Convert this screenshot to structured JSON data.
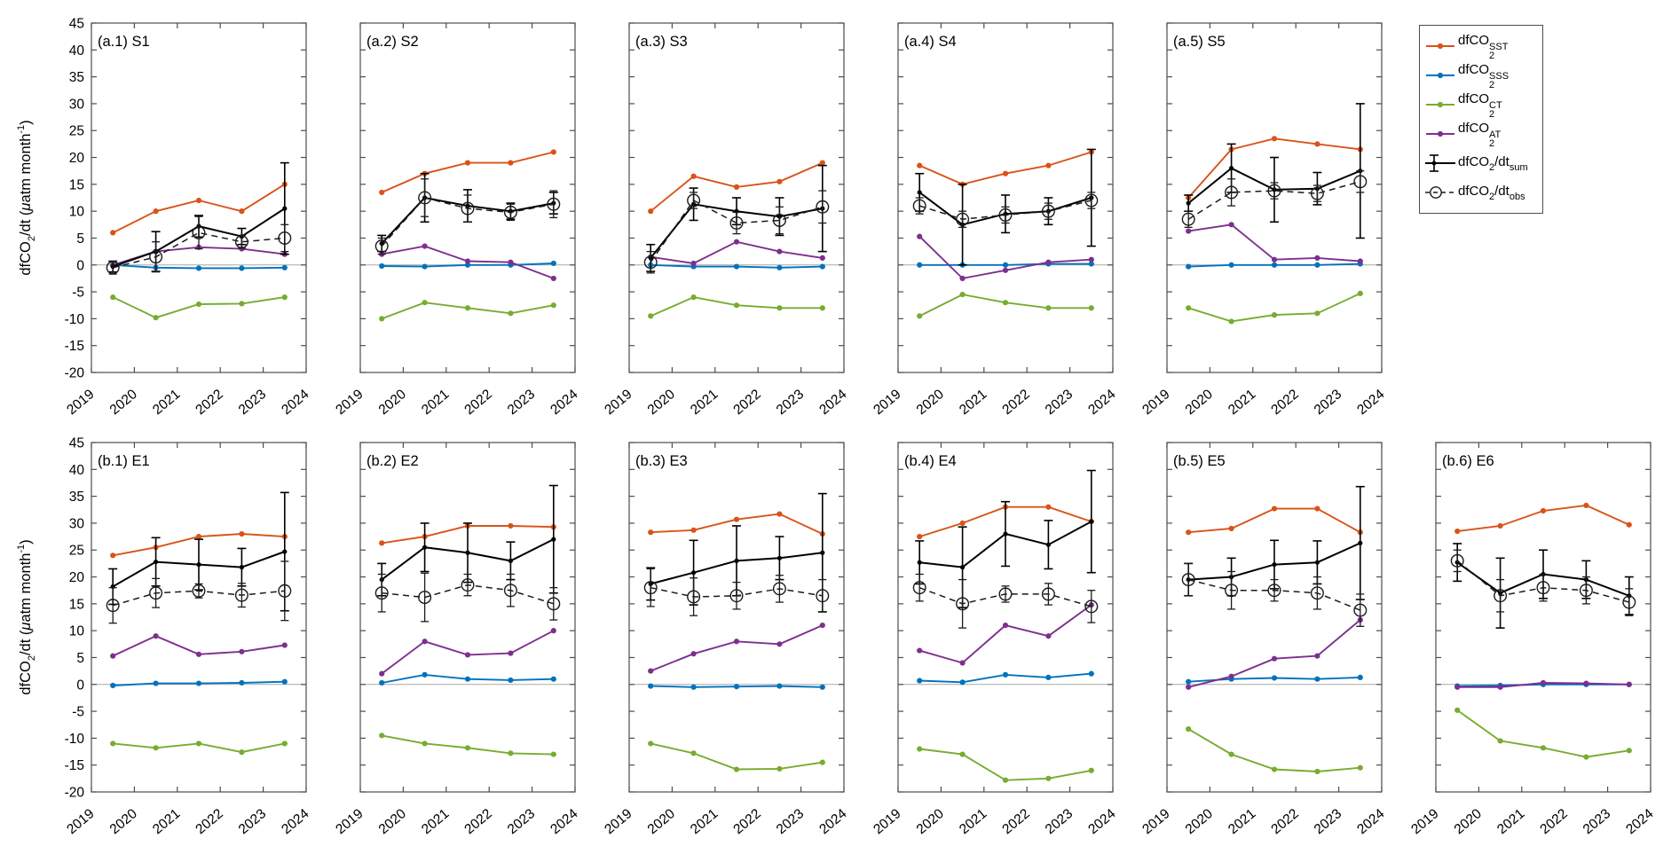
{
  "figure": {
    "background": "#ffffff",
    "ylabel_parts": [
      {
        "t": "dfCO"
      },
      {
        "sub": "2"
      },
      {
        "t": "/dt ("
      },
      {
        "i": "μ"
      },
      {
        "t": "atm month"
      },
      {
        "sup": "-1"
      },
      {
        "t": ")"
      }
    ],
    "colors": {
      "sst": "#D95319",
      "sss": "#0072BD",
      "ct": "#77AC30",
      "at": "#7E2F8E",
      "sum": "#000000",
      "obs": "#1a1a1a",
      "zero_line": "#a9a9a9",
      "axis": "#4d4d4d"
    },
    "axis": {
      "ylim": [
        -20,
        45
      ],
      "xlim": [
        2019,
        2024
      ],
      "yticks": [
        45,
        40,
        35,
        30,
        25,
        20,
        15,
        10,
        5,
        0,
        -5,
        -10,
        -15,
        -20
      ],
      "xticks": [
        2019,
        2020,
        2021,
        2022,
        2023,
        2024
      ],
      "x": [
        2019.5,
        2020.5,
        2021.5,
        2022.5,
        2023.5
      ]
    },
    "legend": [
      {
        "key": "sst",
        "marker": "line-dot",
        "parts": [
          {
            "t": "dfCO"
          },
          {
            "stack": {
              "sup": "SST",
              "sub": "2"
            }
          }
        ]
      },
      {
        "key": "sss",
        "marker": "line-dot",
        "parts": [
          {
            "t": "dfCO"
          },
          {
            "stack": {
              "sup": "SSS",
              "sub": "2"
            }
          }
        ]
      },
      {
        "key": "ct",
        "marker": "line-dot",
        "parts": [
          {
            "t": "dfCO"
          },
          {
            "stack": {
              "sup": "CT",
              "sub": "2"
            }
          }
        ]
      },
      {
        "key": "at",
        "marker": "line-dot",
        "parts": [
          {
            "t": "dfCO"
          },
          {
            "stack": {
              "sup": "AT",
              "sub": "2"
            }
          }
        ]
      },
      {
        "key": "sum",
        "marker": "errorbar",
        "parts": [
          {
            "t": "dfCO"
          },
          {
            "sub": "2"
          },
          {
            "t": "/dt"
          },
          {
            "sub": "sum"
          }
        ]
      },
      {
        "key": "obs",
        "marker": "dashed-circle",
        "parts": [
          {
            "t": "dfCO"
          },
          {
            "sub": "2"
          },
          {
            "t": "/dt"
          },
          {
            "sub": "obs"
          }
        ]
      }
    ]
  },
  "chart_data": [
    {
      "id": "a1",
      "row": 0,
      "col": 0,
      "label": "(a.1) S1",
      "type": "line",
      "series": {
        "sst": [
          6,
          10,
          12,
          10,
          15
        ],
        "sss": [
          0,
          -0.5,
          -0.6,
          -0.6,
          -0.5
        ],
        "ct": [
          -6,
          -9.8,
          -7.3,
          -7.2,
          -6
        ],
        "at": [
          0,
          2.5,
          3.3,
          3,
          2
        ],
        "sum": {
          "values": [
            -0.3,
            2.5,
            7.2,
            5.3,
            10.5
          ],
          "err": [
            1,
            3.7,
            2,
            1.5,
            8.5
          ]
        },
        "obs": {
          "values": [
            -0.5,
            1.5,
            6,
            4.3,
            5
          ],
          "err": [
            1.2,
            2.8,
            3,
            1.2,
            2.5
          ]
        }
      }
    },
    {
      "id": "a2",
      "row": 0,
      "col": 1,
      "label": "(a.2) S2",
      "type": "line",
      "series": {
        "sst": [
          13.5,
          17,
          19,
          19,
          21
        ],
        "sss": [
          -0.2,
          -0.3,
          0,
          0,
          0.3
        ],
        "ct": [
          -10,
          -7,
          -8,
          -9,
          -7.5
        ],
        "at": [
          2,
          3.5,
          0.7,
          0.5,
          -2.5
        ],
        "sum": {
          "values": [
            4,
            12.5,
            11,
            10,
            11.5
          ],
          "err": [
            1.5,
            4.5,
            3,
            1.5,
            2
          ]
        },
        "obs": {
          "values": [
            3.5,
            12.5,
            10.5,
            9.8,
            11.3
          ],
          "err": [
            1.5,
            3.5,
            2.5,
            1.5,
            2.5
          ]
        }
      }
    },
    {
      "id": "a3",
      "row": 0,
      "col": 2,
      "label": "(a.3) S3",
      "type": "line",
      "series": {
        "sst": [
          10,
          16.5,
          14.5,
          15.5,
          19
        ],
        "sss": [
          0,
          -0.3,
          -0.3,
          -0.5,
          -0.3
        ],
        "ct": [
          -9.5,
          -6,
          -7.5,
          -8,
          -8
        ],
        "at": [
          1.5,
          0.3,
          4.3,
          2.5,
          1.3
        ],
        "sum": {
          "values": [
            1.3,
            11.3,
            10,
            9,
            10.5
          ],
          "err": [
            2.5,
            3,
            2.5,
            3.5,
            8
          ]
        },
        "obs": {
          "values": [
            0.5,
            12,
            7.8,
            8.3,
            10.8
          ],
          "err": [
            2,
            1.5,
            2,
            2.5,
            3
          ]
        }
      }
    },
    {
      "id": "a4",
      "row": 0,
      "col": 3,
      "label": "(a.4) S4",
      "type": "line",
      "series": {
        "sst": [
          18.5,
          15,
          17,
          18.5,
          21
        ],
        "sss": [
          0,
          0,
          0,
          0.2,
          0.2
        ],
        "ct": [
          -9.5,
          -5.5,
          -7,
          -8,
          -8
        ],
        "at": [
          5.3,
          -2.5,
          -1,
          0.5,
          1
        ],
        "sum": {
          "values": [
            13.5,
            7.5,
            9.5,
            10,
            12.5
          ],
          "err": [
            3.5,
            7.5,
            3.5,
            2.5,
            9
          ]
        },
        "obs": {
          "values": [
            11,
            8.5,
            9.3,
            10,
            12
          ],
          "err": [
            1.5,
            1.5,
            1.5,
            1.5,
            1.5
          ]
        }
      }
    },
    {
      "id": "a5",
      "row": 0,
      "col": 4,
      "label": "(a.5) S5",
      "type": "line",
      "series": {
        "sst": [
          12.5,
          21.5,
          23.5,
          22.5,
          21.5
        ],
        "sss": [
          -0.3,
          0,
          0,
          0,
          0.2
        ],
        "ct": [
          -8,
          -10.5,
          -9.3,
          -9,
          -5.3
        ],
        "at": [
          6.3,
          7.5,
          1,
          1.3,
          0.7
        ],
        "sum": {
          "values": [
            11.5,
            18,
            14,
            14.2,
            17.5
          ],
          "err": [
            1.5,
            4.5,
            6,
            3,
            12.5
          ]
        },
        "obs": {
          "values": [
            8.5,
            13.5,
            13.8,
            13.3,
            15.5
          ],
          "err": [
            1.5,
            2.5,
            1.5,
            1.5,
            2
          ]
        }
      }
    },
    {
      "id": "b1",
      "row": 1,
      "col": 0,
      "label": "(b.1) E1",
      "type": "line",
      "series": {
        "sst": [
          24,
          25.5,
          27.5,
          28,
          27.5
        ],
        "sss": [
          -0.2,
          0.2,
          0.2,
          0.3,
          0.5
        ],
        "ct": [
          -11,
          -11.8,
          -11,
          -12.6,
          -11
        ],
        "at": [
          5.3,
          9,
          5.6,
          6.1,
          7.3
        ],
        "sum": {
          "values": [
            18.2,
            22.8,
            22.3,
            21.8,
            24.7
          ],
          "err": [
            3.3,
            4.5,
            4.7,
            3.5,
            11
          ]
        },
        "obs": {
          "values": [
            14.7,
            17,
            17.4,
            16.6,
            17.4
          ],
          "err": [
            3.3,
            2.7,
            1.3,
            2.2,
            5.5
          ]
        }
      }
    },
    {
      "id": "b2",
      "row": 1,
      "col": 1,
      "label": "(b.2) E2",
      "type": "line",
      "series": {
        "sst": [
          26.3,
          27.5,
          29.5,
          29.5,
          29.3
        ],
        "sss": [
          0.3,
          1.8,
          1,
          0.8,
          1
        ],
        "ct": [
          -9.5,
          -11,
          -11.8,
          -12.8,
          -13
        ],
        "at": [
          2,
          8,
          5.5,
          5.8,
          10
        ],
        "sum": {
          "values": [
            19.5,
            25.5,
            24.5,
            23,
            27
          ],
          "err": [
            3,
            4.5,
            5.5,
            3.5,
            10
          ]
        },
        "obs": {
          "values": [
            17,
            16.2,
            18.5,
            17.5,
            15
          ],
          "err": [
            3.5,
            4.5,
            2,
            3,
            3
          ]
        }
      }
    },
    {
      "id": "b3",
      "row": 1,
      "col": 2,
      "label": "(b.3) E3",
      "type": "line",
      "series": {
        "sst": [
          28.3,
          28.7,
          30.7,
          31.7,
          28
        ],
        "sss": [
          -0.3,
          -0.5,
          -0.4,
          -0.3,
          -0.5
        ],
        "ct": [
          -11,
          -12.8,
          -15.8,
          -15.7,
          -14.5
        ],
        "at": [
          2.5,
          5.7,
          8,
          7.5,
          11
        ],
        "sum": {
          "values": [
            18.7,
            20.8,
            23,
            23.5,
            24.5
          ],
          "err": [
            3,
            6,
            6.5,
            4,
            11
          ]
        },
        "obs": {
          "values": [
            18,
            16.3,
            16.5,
            17.8,
            16.5
          ],
          "err": [
            3.5,
            3.5,
            2.5,
            2.5,
            3
          ]
        }
      }
    },
    {
      "id": "b4",
      "row": 1,
      "col": 3,
      "label": "(b.4) E4",
      "type": "line",
      "series": {
        "sst": [
          27.5,
          30,
          33,
          33,
          30.3
        ],
        "sss": [
          0.7,
          0.4,
          1.8,
          1.3,
          2
        ],
        "ct": [
          -12,
          -13,
          -17.8,
          -17.5,
          -16
        ],
        "at": [
          6.3,
          4,
          11,
          9,
          14.8
        ],
        "sum": {
          "values": [
            22.7,
            21.8,
            28,
            26,
            30.3
          ],
          "err": [
            4,
            7.5,
            6,
            4.5,
            9.5
          ]
        },
        "obs": {
          "values": [
            18,
            15,
            16.8,
            16.8,
            14.5
          ],
          "err": [
            2.5,
            4.5,
            1.5,
            2,
            3
          ]
        }
      }
    },
    {
      "id": "b5",
      "row": 1,
      "col": 4,
      "label": "(b.5) E5",
      "type": "line",
      "series": {
        "sst": [
          28.3,
          29,
          32.7,
          32.7,
          28.3
        ],
        "sss": [
          0.5,
          1,
          1.2,
          1,
          1.3
        ],
        "ct": [
          -8.3,
          -13,
          -15.8,
          -16.2,
          -15.5
        ],
        "at": [
          -0.5,
          1.5,
          4.8,
          5.3,
          12
        ],
        "sum": {
          "values": [
            19.5,
            20,
            22.3,
            22.7,
            26.3
          ],
          "err": [
            3,
            3.5,
            4.5,
            4,
            10.5
          ]
        },
        "obs": {
          "values": [
            19.5,
            17.5,
            17.5,
            17,
            13.8
          ],
          "err": [
            3,
            3.5,
            2,
            3,
            3
          ]
        }
      }
    },
    {
      "id": "b6",
      "row": 1,
      "col": 5,
      "label": "(b.6) E6",
      "type": "line",
      "series": {
        "sst": [
          28.5,
          29.5,
          32.3,
          33.3,
          29.7
        ],
        "sss": [
          -0.3,
          -0.2,
          0,
          0,
          0
        ],
        "ct": [
          -4.8,
          -10.5,
          -11.8,
          -13.5,
          -12.3
        ],
        "at": [
          -0.5,
          -0.5,
          0.3,
          0.2,
          0
        ],
        "sum": {
          "values": [
            22.7,
            17,
            20.5,
            19.5,
            16.5
          ],
          "err": [
            3.5,
            6.5,
            4.5,
            3.5,
            3.5
          ]
        },
        "obs": {
          "values": [
            23,
            16.5,
            18,
            17.5,
            15.3
          ],
          "err": [
            2,
            3,
            2.5,
            2.5,
            2.5
          ]
        }
      }
    }
  ]
}
